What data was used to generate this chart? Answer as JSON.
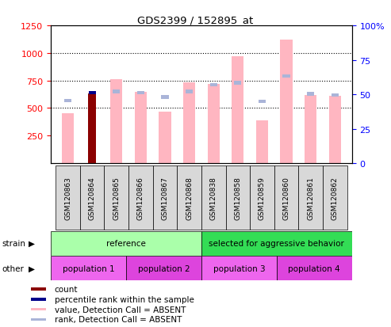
{
  "title": "GDS2399 / 152895_at",
  "samples": [
    "GSM120863",
    "GSM120864",
    "GSM120865",
    "GSM120866",
    "GSM120867",
    "GSM120868",
    "GSM120838",
    "GSM120858",
    "GSM120859",
    "GSM120860",
    "GSM120861",
    "GSM120862"
  ],
  "count_values": [
    null,
    630,
    null,
    null,
    null,
    null,
    null,
    null,
    null,
    null,
    null,
    null
  ],
  "value_absent": [
    450,
    null,
    760,
    650,
    470,
    730,
    720,
    970,
    390,
    1120,
    620,
    610
  ],
  "rank_absent": [
    570,
    null,
    650,
    640,
    600,
    650,
    710,
    730,
    560,
    790,
    630,
    620
  ],
  "percentile_present": [
    null,
    640,
    null,
    null,
    null,
    null,
    null,
    null,
    null,
    null,
    null,
    null
  ],
  "ylim_left": [
    0,
    1250
  ],
  "ylim_right": [
    0,
    100
  ],
  "yticks_left": [
    250,
    500,
    750,
    1000,
    1250
  ],
  "yticks_right": [
    0,
    25,
    50,
    75,
    100
  ],
  "left_tick_labels": [
    "250",
    "500",
    "750",
    "1000",
    "1250"
  ],
  "right_tick_labels": [
    "0",
    "25",
    "50",
    "75",
    "100%"
  ],
  "strain_groups": [
    {
      "label": "reference",
      "start": 0,
      "end": 6,
      "color": "#aaffaa"
    },
    {
      "label": "selected for aggressive behavior",
      "start": 6,
      "end": 12,
      "color": "#33dd55"
    }
  ],
  "other_groups": [
    {
      "label": "population 1",
      "start": 0,
      "end": 3,
      "color": "#ee66ee"
    },
    {
      "label": "population 2",
      "start": 3,
      "end": 6,
      "color": "#dd44dd"
    },
    {
      "label": "population 3",
      "start": 6,
      "end": 9,
      "color": "#ee66ee"
    },
    {
      "label": "population 4",
      "start": 9,
      "end": 12,
      "color": "#dd44dd"
    }
  ],
  "value_absent_color": "#ffb6c1",
  "rank_absent_color": "#aab4d8",
  "count_color": "#8b0000",
  "percentile_color": "#00008b",
  "legend_items": [
    {
      "label": "count",
      "color": "#8b0000"
    },
    {
      "label": "percentile rank within the sample",
      "color": "#00008b"
    },
    {
      "label": "value, Detection Call = ABSENT",
      "color": "#ffb6c1"
    },
    {
      "label": "rank, Detection Call = ABSENT",
      "color": "#aab4d8"
    }
  ]
}
